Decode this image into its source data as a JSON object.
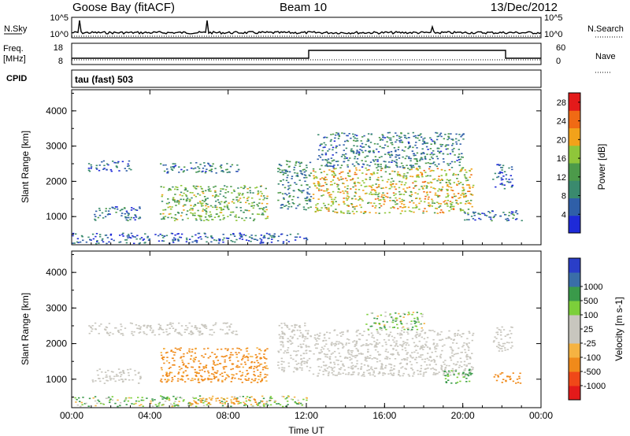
{
  "header": {
    "station": "Goose Bay (fitACF)",
    "beam": "Beam 10",
    "date": "13/Dec/2012"
  },
  "side_labels": {
    "nsky": "N.Sky",
    "nsearch": "N.Search",
    "freq_line1": "Freq.",
    "freq_line2": "[MHz]",
    "nave": "Nave",
    "cpid": "CPID",
    "cpid_value": "tau (fast) 503"
  },
  "noise_panel": {
    "left_ticks": [
      "10^5",
      "10^0"
    ],
    "right_ticks": [
      "10^5",
      "10^0"
    ]
  },
  "freq_panel": {
    "left_ticks": [
      "18",
      "8"
    ],
    "right_ticks": [
      "60",
      "0"
    ]
  },
  "colors": {
    "power_scale": [
      "#1e2ad8",
      "#2f5fa8",
      "#3a8a6e",
      "#4c9a4a",
      "#8fc63a",
      "#f2a21a",
      "#f06a14",
      "#e31a1a"
    ],
    "velocity_scale": [
      "#e31a1a",
      "#f04818",
      "#f08a1a",
      "#f5b342",
      "#c8c6be",
      "#c8c6be",
      "#7ccf3a",
      "#3a9a4a",
      "#3a6ea8",
      "#2a3ec8"
    ],
    "ground_scatter": "#c8c6be"
  },
  "chart_data": [
    {
      "type": "heatmap",
      "title": "Power",
      "xlabel": "Time UT",
      "ylabel": "Slant Range [km]",
      "x_ticks": [
        "00:00",
        "04:00",
        "08:00",
        "12:00",
        "16:00",
        "20:00",
        "00:00"
      ],
      "y_ticks": [
        1000,
        2000,
        3000,
        4000
      ],
      "ylim": [
        200,
        4600
      ],
      "xlim_hours": [
        0,
        24
      ],
      "colorbar_label": "Power [dB]",
      "colorbar_ticks": [
        4,
        8,
        12,
        16,
        20,
        24,
        28
      ],
      "colorbar_range": [
        0,
        30
      ],
      "regions": [
        {
          "t": [
            0.0,
            12.0
          ],
          "r": [
            250,
            550
          ],
          "level": 6
        },
        {
          "t": [
            1.0,
            3.5
          ],
          "r": [
            900,
            1300
          ],
          "level": 8
        },
        {
          "t": [
            0.8,
            3.0
          ],
          "r": [
            2300,
            2600
          ],
          "level": 6
        },
        {
          "t": [
            4.5,
            8.5
          ],
          "r": [
            2250,
            2550
          ],
          "level": 9
        },
        {
          "t": [
            4.5,
            10.0
          ],
          "r": [
            900,
            1900
          ],
          "level": 16
        },
        {
          "t": [
            10.5,
            12.2
          ],
          "r": [
            1200,
            2600
          ],
          "level": 10
        },
        {
          "t": [
            12.3,
            20.5
          ],
          "r": [
            1100,
            2400
          ],
          "level": 20
        },
        {
          "t": [
            12.5,
            20.0
          ],
          "r": [
            2400,
            3400
          ],
          "level": 9
        },
        {
          "t": [
            20.0,
            23.0
          ],
          "r": [
            900,
            1200
          ],
          "level": 7
        },
        {
          "t": [
            21.5,
            22.5
          ],
          "r": [
            1800,
            2500
          ],
          "level": 5
        }
      ]
    },
    {
      "type": "heatmap",
      "title": "Velocity",
      "xlabel": "Time UT",
      "ylabel": "Slant Range [km]",
      "x_ticks": [
        "00:00",
        "04:00",
        "08:00",
        "12:00",
        "16:00",
        "20:00",
        "00:00"
      ],
      "y_ticks": [
        1000,
        2000,
        3000,
        4000
      ],
      "ylim": [
        200,
        4600
      ],
      "xlim_hours": [
        0,
        24
      ],
      "colorbar_label": "Velocity [m s-1]",
      "colorbar_ticks": [
        -1000,
        -500,
        -100,
        -25,
        25,
        100,
        500,
        1000
      ],
      "regions": [
        {
          "t": [
            0.0,
            12.0
          ],
          "r": [
            250,
            550
          ],
          "velocity": 50
        },
        {
          "t": [
            6.0,
            10.0
          ],
          "r": [
            300,
            500
          ],
          "velocity": -150
        },
        {
          "t": [
            1.0,
            3.5
          ],
          "r": [
            900,
            1300
          ],
          "velocity": 0
        },
        {
          "t": [
            0.8,
            8.5
          ],
          "r": [
            2250,
            2600
          ],
          "velocity": 0
        },
        {
          "t": [
            4.5,
            10.0
          ],
          "r": [
            900,
            1900
          ],
          "velocity": -200
        },
        {
          "t": [
            10.5,
            12.2
          ],
          "r": [
            1200,
            2600
          ],
          "velocity": 0
        },
        {
          "t": [
            12.3,
            20.5
          ],
          "r": [
            1100,
            2400
          ],
          "velocity": 0
        },
        {
          "t": [
            15.0,
            18.0
          ],
          "r": [
            2400,
            2900
          ],
          "velocity": 60
        },
        {
          "t": [
            19.0,
            20.5
          ],
          "r": [
            900,
            1300
          ],
          "velocity": 150
        },
        {
          "t": [
            21.5,
            23.0
          ],
          "r": [
            900,
            1200
          ],
          "velocity": -300
        },
        {
          "t": [
            21.5,
            22.5
          ],
          "r": [
            1800,
            2500
          ],
          "velocity": 0
        }
      ]
    }
  ]
}
